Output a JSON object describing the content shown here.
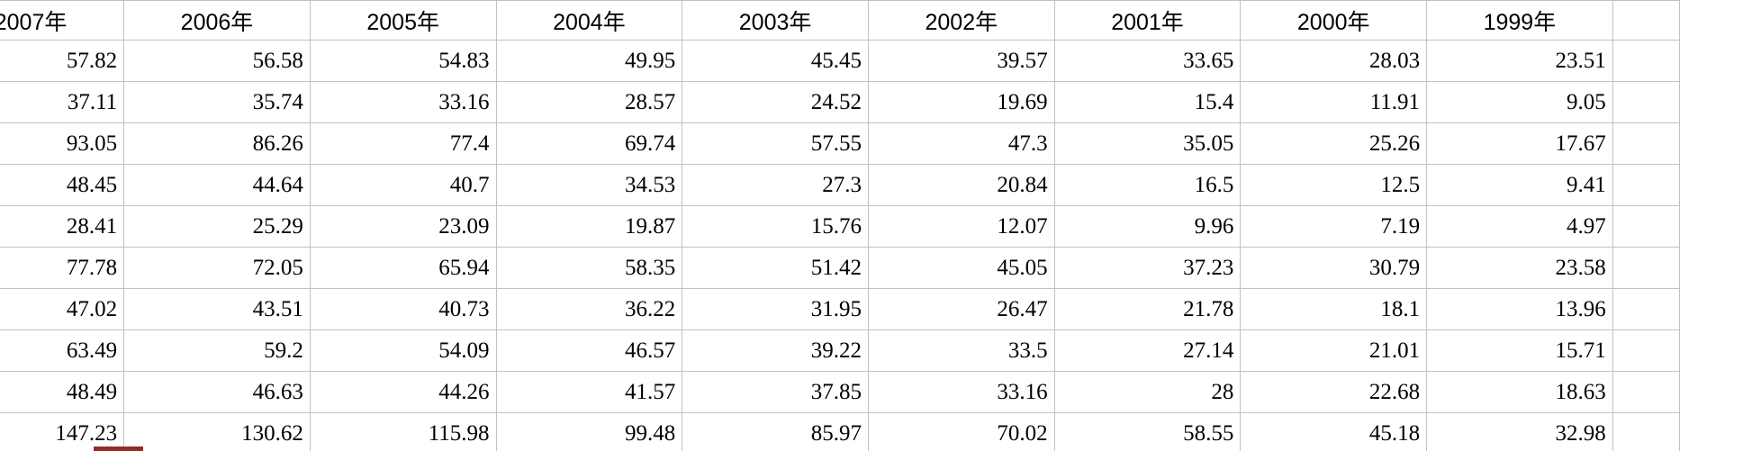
{
  "table": {
    "column_headers": [
      "2007年",
      "2006年",
      "2005年",
      "2004年",
      "2003年",
      "2002年",
      "2001年",
      "2000年",
      "1999年"
    ],
    "rows": [
      [
        "57.82",
        "56.58",
        "54.83",
        "49.95",
        "45.45",
        "39.57",
        "33.65",
        "28.03",
        "23.51"
      ],
      [
        "37.11",
        "35.74",
        "33.16",
        "28.57",
        "24.52",
        "19.69",
        "15.4",
        "11.91",
        "9.05"
      ],
      [
        "93.05",
        "86.26",
        "77.4",
        "69.74",
        "57.55",
        "47.3",
        "35.05",
        "25.26",
        "17.67"
      ],
      [
        "48.45",
        "44.64",
        "40.7",
        "34.53",
        "27.3",
        "20.84",
        "16.5",
        "12.5",
        "9.41"
      ],
      [
        "28.41",
        "25.29",
        "23.09",
        "19.87",
        "15.76",
        "12.07",
        "9.96",
        "7.19",
        "4.97"
      ],
      [
        "77.78",
        "72.05",
        "65.94",
        "58.35",
        "51.42",
        "45.05",
        "37.23",
        "30.79",
        "23.58"
      ],
      [
        "47.02",
        "43.51",
        "40.73",
        "36.22",
        "31.95",
        "26.47",
        "21.78",
        "18.1",
        "13.96"
      ],
      [
        "63.49",
        "59.2",
        "54.09",
        "46.57",
        "39.22",
        "33.5",
        "27.14",
        "21.01",
        "15.71"
      ],
      [
        "48.49",
        "46.63",
        "44.26",
        "41.57",
        "37.85",
        "33.16",
        "28",
        "22.68",
        "18.63"
      ],
      [
        "147.23",
        "130.62",
        "115.98",
        "99.48",
        "85.97",
        "70.02",
        "58.55",
        "45.18",
        "32.98"
      ]
    ]
  },
  "colors": {
    "gridline": "#b9c5cd",
    "cell_text": "#000000",
    "background": "#ffffff",
    "red_marker": "#962d22"
  }
}
